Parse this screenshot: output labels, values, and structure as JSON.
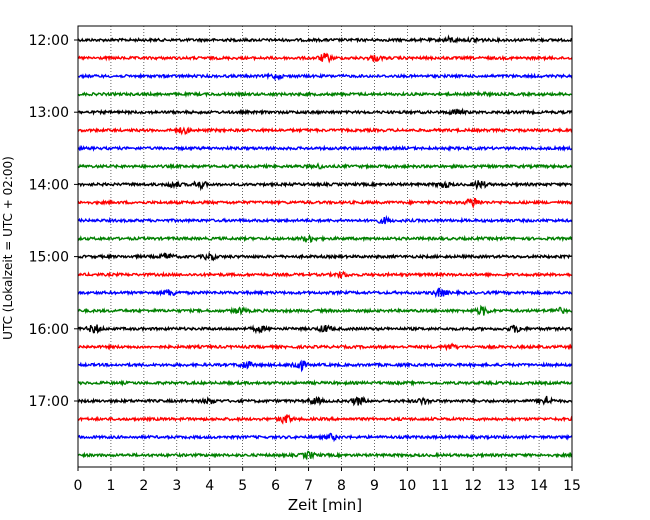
{
  "chart_data": {
    "type": "line",
    "description_kind": "helicorder",
    "xlabel": "Zeit  [min]",
    "ylabel": "UTC (Lokalzeit = UTC + 02:00)",
    "xlim": [
      0,
      15
    ],
    "xticks": [
      "0",
      "1",
      "2",
      "3",
      "4",
      "5",
      "6",
      "7",
      "8",
      "9",
      "10",
      "11",
      "12",
      "13",
      "14",
      "15"
    ],
    "grid_x": true,
    "trace_colors": [
      "#000000",
      "#ff0000",
      "#0000ff",
      "#008000"
    ],
    "traces_per_hour": 4,
    "trace_interval_min": 15,
    "start_time": "12:00",
    "row_times": [
      "12:00",
      "12:15",
      "12:30",
      "12:45",
      "13:00",
      "13:15",
      "13:30",
      "13:45",
      "14:00",
      "14:15",
      "14:30",
      "14:45",
      "15:00",
      "15:15",
      "15:30",
      "15:45",
      "16:00",
      "16:15",
      "16:30",
      "16:45",
      "17:00",
      "17:15",
      "17:30",
      "17:45"
    ],
    "y_tick_labels": [
      "12:00",
      "13:00",
      "14:00",
      "15:00",
      "16:00",
      "17:00"
    ],
    "bursts": [
      {
        "row": 0,
        "t": 11.3,
        "amp": 2.2
      },
      {
        "row": 0,
        "t": 12.1,
        "amp": 2.0
      },
      {
        "row": 1,
        "t": 7.5,
        "amp": 3.8
      },
      {
        "row": 1,
        "t": 9.0,
        "amp": 2.4
      },
      {
        "row": 2,
        "t": 6.0,
        "amp": 1.8
      },
      {
        "row": 3,
        "t": 12.2,
        "amp": 1.5
      },
      {
        "row": 4,
        "t": 11.5,
        "amp": 2.3
      },
      {
        "row": 5,
        "t": 3.2,
        "amp": 2.5
      },
      {
        "row": 7,
        "t": 7.3,
        "amp": 1.5
      },
      {
        "row": 8,
        "t": 2.9,
        "amp": 2.4
      },
      {
        "row": 8,
        "t": 3.7,
        "amp": 3.2
      },
      {
        "row": 8,
        "t": 11.1,
        "amp": 2.6
      },
      {
        "row": 8,
        "t": 12.2,
        "amp": 3.5
      },
      {
        "row": 9,
        "t": 12.0,
        "amp": 4.5
      },
      {
        "row": 10,
        "t": 9.3,
        "amp": 2.5
      },
      {
        "row": 11,
        "t": 7.0,
        "amp": 3.0
      },
      {
        "row": 12,
        "t": 2.7,
        "amp": 2.6
      },
      {
        "row": 12,
        "t": 4.0,
        "amp": 2.8
      },
      {
        "row": 13,
        "t": 8.0,
        "amp": 2.2
      },
      {
        "row": 14,
        "t": 2.8,
        "amp": 2.6
      },
      {
        "row": 14,
        "t": 11.0,
        "amp": 3.6
      },
      {
        "row": 15,
        "t": 4.9,
        "amp": 2.5
      },
      {
        "row": 15,
        "t": 12.3,
        "amp": 3.8
      },
      {
        "row": 15,
        "t": 14.6,
        "amp": 2.2
      },
      {
        "row": 16,
        "t": 0.5,
        "amp": 3.8
      },
      {
        "row": 16,
        "t": 5.5,
        "amp": 2.5
      },
      {
        "row": 16,
        "t": 7.5,
        "amp": 3.0
      },
      {
        "row": 16,
        "t": 13.3,
        "amp": 3.0
      },
      {
        "row": 17,
        "t": 11.3,
        "amp": 2.0
      },
      {
        "row": 18,
        "t": 5.1,
        "amp": 3.0
      },
      {
        "row": 18,
        "t": 6.7,
        "amp": 5.5
      },
      {
        "row": 20,
        "t": 4.0,
        "amp": 2.2
      },
      {
        "row": 20,
        "t": 7.2,
        "amp": 3.0
      },
      {
        "row": 20,
        "t": 8.5,
        "amp": 3.6
      },
      {
        "row": 20,
        "t": 10.5,
        "amp": 2.5
      },
      {
        "row": 20,
        "t": 14.2,
        "amp": 4.2
      },
      {
        "row": 21,
        "t": 6.3,
        "amp": 3.8
      },
      {
        "row": 22,
        "t": 7.7,
        "amp": 2.5
      },
      {
        "row": 23,
        "t": 7.0,
        "amp": 3.0
      }
    ]
  }
}
